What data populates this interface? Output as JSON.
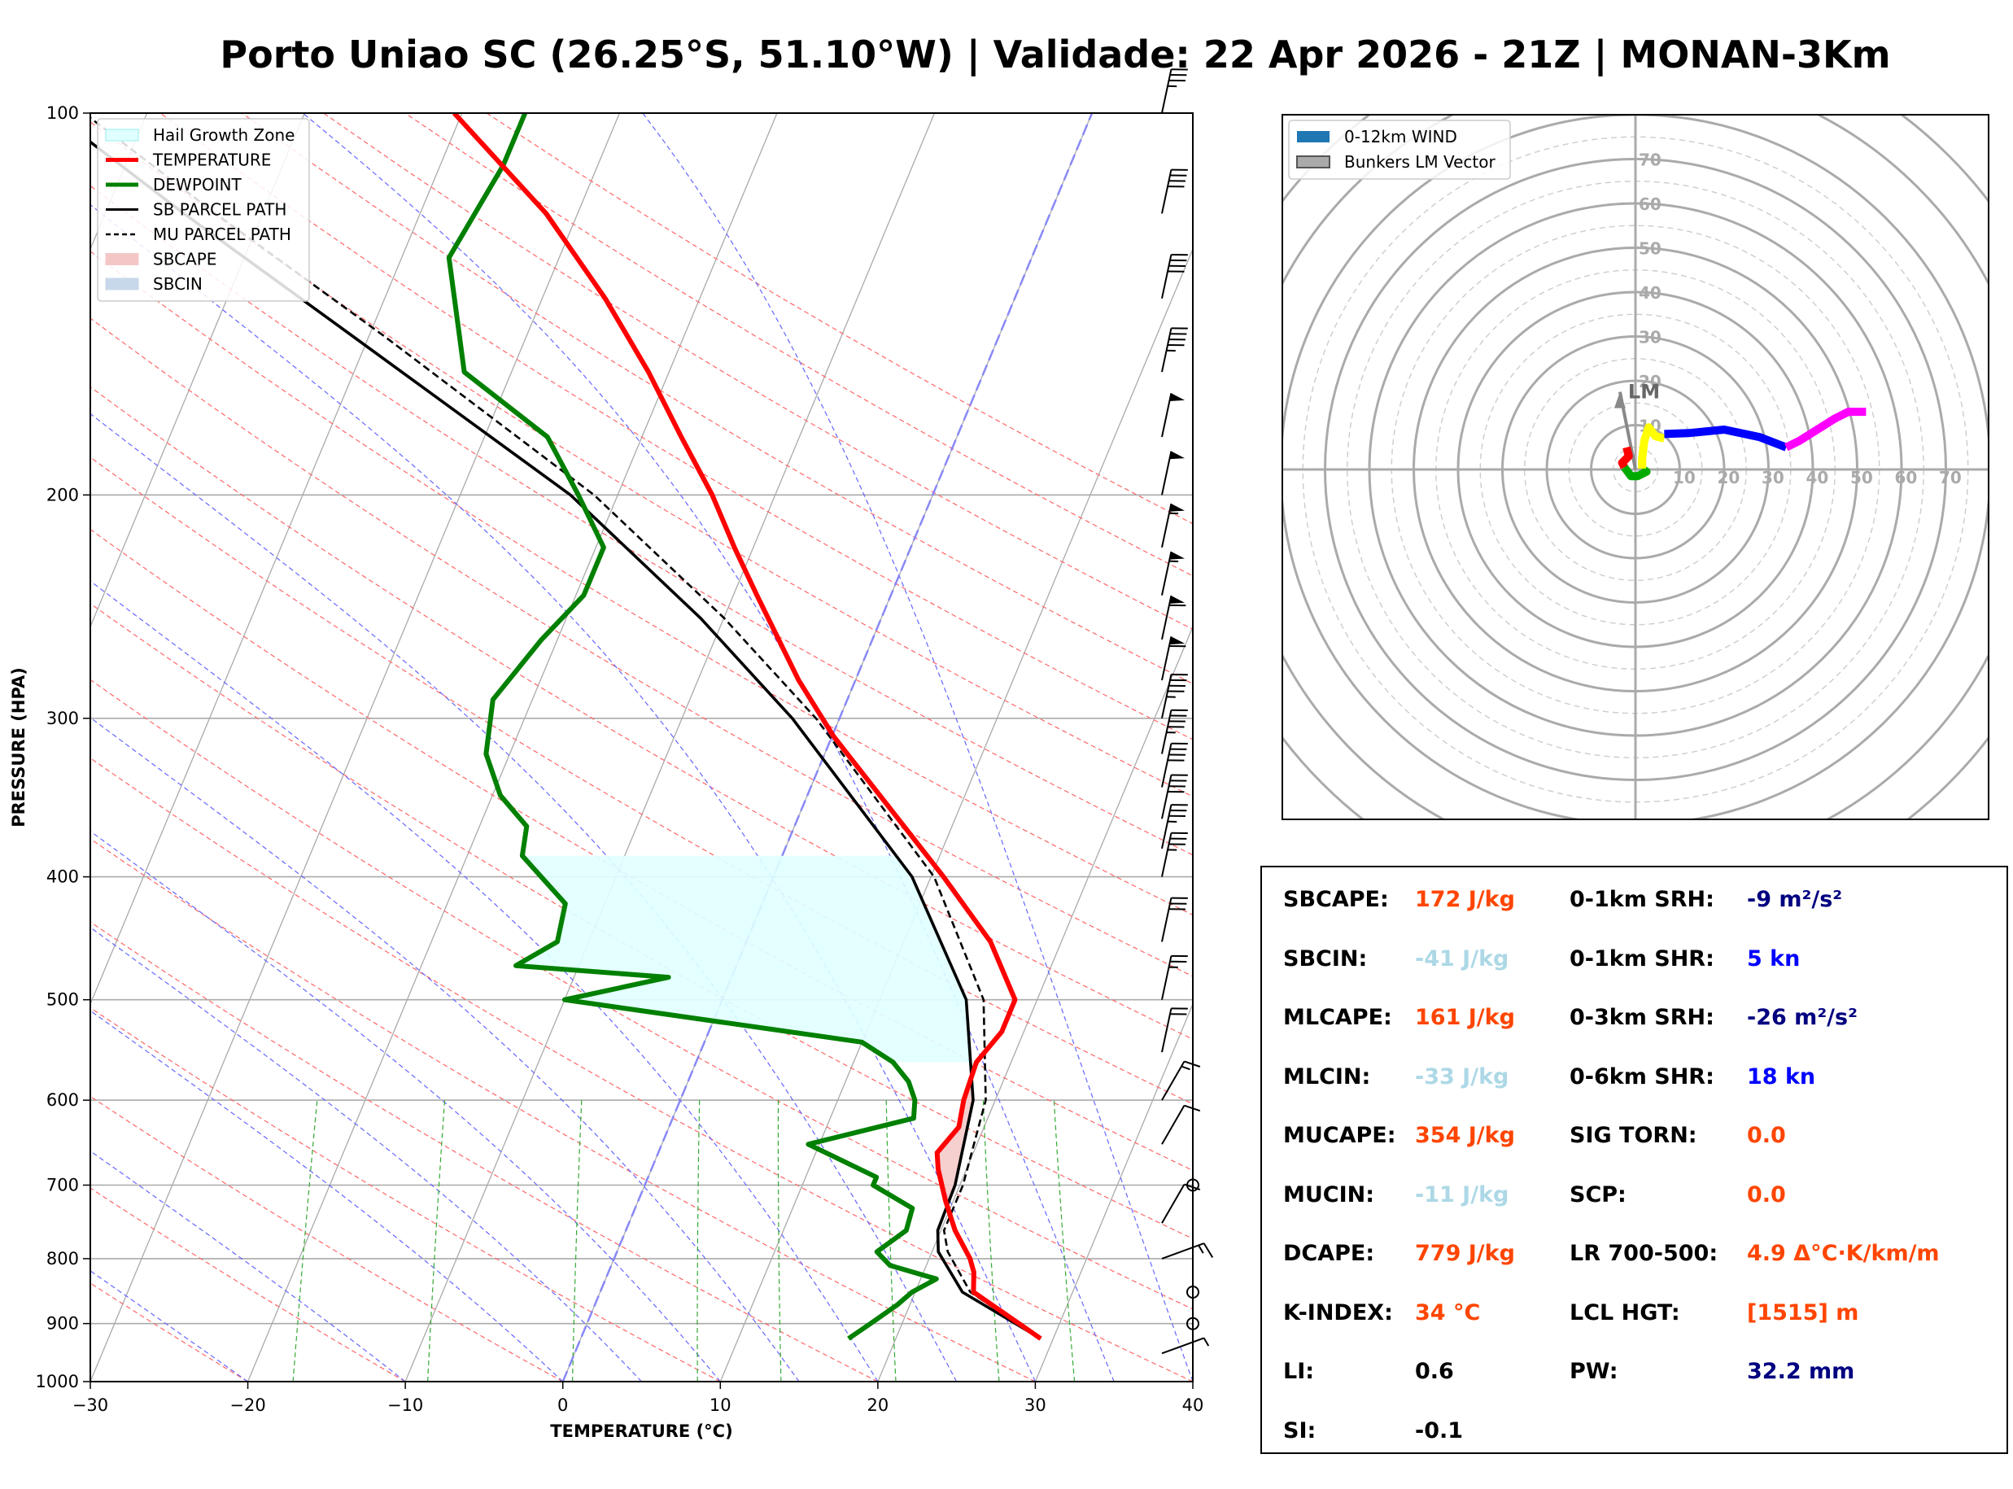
{
  "title": "Porto Uniao SC (26.25°S, 51.10°W) | Validade: 22 Apr 2026 - 21Z | MONAN-3Km",
  "colors": {
    "temperature": "#ff0000",
    "dewpoint": "#008000",
    "parcel": "#000000",
    "hail": "#e0ffff",
    "sbcape": "#f4c7c7",
    "sbcin": "#c7d8ea",
    "dry_adiabat": "#ff6666",
    "moist_adiabat": "#6666ff",
    "mixing_ratio": "#33aa33",
    "cape_text": "#ff4500",
    "cin_text": "#add8e6",
    "srh_text": "#000080",
    "shr_text": "#0000ff"
  },
  "chart_data": [
    {
      "type": "skew-t",
      "title": "",
      "xlabel": "TEMPERATURE (°C)",
      "ylabel": "PRESSURE (HPA)",
      "xlim": [
        -30,
        40
      ],
      "ylim": [
        1000,
        100
      ],
      "xticks": [
        -30,
        -20,
        -10,
        0,
        10,
        20,
        30,
        40
      ],
      "xtick_labels": [
        "−30",
        "−20",
        "−10",
        "0",
        "10",
        "20",
        "30",
        "40"
      ],
      "yticks": [
        1000,
        900,
        800,
        700,
        600,
        500,
        400,
        300,
        200,
        100
      ],
      "ytick_labels": [
        "1000",
        "900",
        "800",
        "700",
        "600",
        "500",
        "400",
        "300",
        "200",
        "100"
      ],
      "legend": {
        "placement": "top-left",
        "entries": [
          "Hail Growth Zone",
          "TEMPERATURE",
          "DEWPOINT",
          "SB PARCEL PATH",
          "MU PARCEL PATH",
          "SBCAPE",
          "SBCIN"
        ]
      },
      "series": [
        {
          "name": "TEMPERATURE",
          "points": [
            [
              925,
              29.2
            ],
            [
              850,
              23.7
            ],
            [
              820,
              23.2
            ],
            [
              800,
              22.6
            ],
            [
              760,
              20.9
            ],
            [
              720,
              19.5
            ],
            [
              680,
              18.2
            ],
            [
              660,
              17.7
            ],
            [
              630,
              18.4
            ],
            [
              600,
              18.0
            ],
            [
              560,
              17.8
            ],
            [
              530,
              18.6
            ],
            [
              500,
              18.6
            ],
            [
              450,
              15.5
            ],
            [
              400,
              10.8
            ],
            [
              350,
              5.2
            ],
            [
              310,
              0.1
            ],
            [
              280,
              -3.6
            ],
            [
              240,
              -8.5
            ],
            [
              220,
              -11.2
            ],
            [
              200,
              -14.0
            ],
            [
              180,
              -17.5
            ],
            [
              160,
              -21.3
            ],
            [
              140,
              -26.0
            ],
            [
              120,
              -32.0
            ],
            [
              100,
              -40.5
            ]
          ]
        },
        {
          "name": "DEWPOINT",
          "points": [
            [
              925,
              17.0
            ],
            [
              900,
              18.0
            ],
            [
              870,
              19.2
            ],
            [
              850,
              19.8
            ],
            [
              830,
              21.0
            ],
            [
              810,
              17.7
            ],
            [
              790,
              16.5
            ],
            [
              760,
              17.8
            ],
            [
              730,
              17.6
            ],
            [
              700,
              14.5
            ],
            [
              690,
              14.5
            ],
            [
              650,
              9.3
            ],
            [
              620,
              15.3
            ],
            [
              600,
              14.9
            ],
            [
              580,
              14.0
            ],
            [
              560,
              12.5
            ],
            [
              540,
              10.0
            ],
            [
              500,
              -10.0
            ],
            [
              480,
              -4.0
            ],
            [
              470,
              -14.0
            ],
            [
              450,
              -12.0
            ],
            [
              420,
              -12.5
            ],
            [
              385,
              -16.5
            ],
            [
              365,
              -17.0
            ],
            [
              345,
              -19.5
            ],
            [
              320,
              -21.5
            ],
            [
              290,
              -22.5
            ],
            [
              260,
              -21.0
            ],
            [
              240,
              -19.5
            ],
            [
              220,
              -19.5
            ],
            [
              200,
              -22.5
            ],
            [
              180,
              -26.0
            ],
            [
              160,
              -33.0
            ],
            [
              130,
              -37.0
            ],
            [
              110,
              -36.0
            ],
            [
              100,
              -36.0
            ]
          ]
        },
        {
          "name": "SB PARCEL PATH",
          "points": [
            [
              925,
              29.2
            ],
            [
              850,
              23.0
            ],
            [
              790,
              20.4
            ],
            [
              760,
              19.8
            ],
            [
              700,
              19.7
            ],
            [
              600,
              18.6
            ],
            [
              500,
              15.5
            ],
            [
              400,
              8.8
            ],
            [
              300,
              -3.0
            ],
            [
              250,
              -11.5
            ],
            [
              200,
              -23.0
            ],
            [
              150,
              -41.0
            ],
            [
              120,
              -55.0
            ],
            [
              100,
              -66.0
            ]
          ]
        },
        {
          "name": "MU PARCEL PATH",
          "points": [
            [
              925,
              29.2
            ],
            [
              850,
              23.5
            ],
            [
              790,
              21.0
            ],
            [
              760,
              20.2
            ],
            [
              700,
              20.2
            ],
            [
              600,
              19.4
            ],
            [
              500,
              16.6
            ],
            [
              400,
              10.2
            ],
            [
              300,
              -1.5
            ],
            [
              250,
              -10.0
            ],
            [
              200,
              -21.5
            ],
            [
              150,
              -39.0
            ],
            [
              120,
              -53.0
            ],
            [
              100,
              -64.0
            ]
          ]
        }
      ],
      "wind_barbs": {
        "pressures": [
          100,
          120,
          140,
          160,
          180,
          200,
          220,
          240,
          260,
          280,
          300,
          320,
          340,
          360,
          380,
          400,
          450,
          500,
          550,
          600,
          650,
          700,
          750,
          800,
          850,
          900,
          950
        ],
        "speeds_kt": [
          35,
          40,
          40,
          45,
          50,
          50,
          55,
          55,
          60,
          60,
          45,
          45,
          40,
          40,
          35,
          35,
          30,
          25,
          20,
          15,
          10,
          0,
          10,
          15,
          0,
          0,
          5
        ]
      }
    },
    {
      "type": "hodograph",
      "rings_kt": [
        10,
        20,
        30,
        40,
        50,
        60,
        70
      ],
      "x_tick_labels": [
        "10",
        "20",
        "30",
        "40",
        "50",
        "60",
        "70"
      ],
      "y_tick_labels": [
        "10",
        "20",
        "30",
        "40",
        "50",
        "60",
        "70"
      ],
      "legend": {
        "placement": "top-left",
        "entries": [
          "0-12km WIND",
          "Bunkers LM Vector"
        ]
      },
      "lm_label": "LM",
      "lm_vector": [
        -3.5,
        17.5
      ],
      "segments": [
        {
          "name": "0-1km",
          "color": "#ff0000",
          "points": [
            [
              -2,
              5
            ],
            [
              -1.5,
              3
            ],
            [
              -3.0,
              1.5
            ],
            [
              -2.5,
              0.5
            ]
          ]
        },
        {
          "name": "1-3km",
          "color": "#00aa00",
          "points": [
            [
              -2.5,
              0.5
            ],
            [
              -1.0,
              -1.5
            ],
            [
              0.5,
              -1.5
            ],
            [
              2.5,
              -0.5
            ],
            [
              1.5,
              0.2
            ]
          ]
        },
        {
          "name": "3-6km",
          "color": "#ffff00",
          "points": [
            [
              1.5,
              0.2
            ],
            [
              1.5,
              2.5
            ],
            [
              2.0,
              6.5
            ],
            [
              3.0,
              9.5
            ],
            [
              4.5,
              7.5
            ],
            [
              6.5,
              7
            ]
          ]
        },
        {
          "name": "6-9km",
          "color": "#0000ff",
          "points": [
            [
              6.5,
              8
            ],
            [
              12,
              8.2
            ],
            [
              20,
              9
            ],
            [
              28,
              7.3
            ],
            [
              34,
              5
            ]
          ]
        },
        {
          "name": "9-12km",
          "color": "#ff00ff",
          "points": [
            [
              34,
              5
            ],
            [
              37,
              6.5
            ],
            [
              41,
              9
            ],
            [
              45,
              11.5
            ],
            [
              48,
              13
            ],
            [
              52,
              13
            ]
          ]
        }
      ]
    }
  ],
  "params": {
    "left": [
      {
        "label": "SBCAPE:",
        "value": "172 J/kg",
        "color": "#ff4500"
      },
      {
        "label": "SBCIN:",
        "value": "-41 J/kg",
        "color": "#add8e6"
      },
      {
        "label": "MLCAPE:",
        "value": "161 J/kg",
        "color": "#ff4500"
      },
      {
        "label": "MLCIN:",
        "value": "-33 J/kg",
        "color": "#add8e6"
      },
      {
        "label": "MUCAPE:",
        "value": "354 J/kg",
        "color": "#ff4500"
      },
      {
        "label": "MUCIN:",
        "value": "-11 J/kg",
        "color": "#add8e6"
      },
      {
        "label": "DCAPE:",
        "value": "779 J/kg",
        "color": "#ff4500"
      },
      {
        "label": "K-INDEX:",
        "value": "34 °C",
        "color": "#ff4500"
      },
      {
        "label": "LI:",
        "value": "0.6",
        "color": "#000000"
      },
      {
        "label": "SI:",
        "value": "-0.1",
        "color": "#000000"
      }
    ],
    "right": [
      {
        "label": "0-1km SRH:",
        "value": "-9 m²/s²",
        "color": "#000080"
      },
      {
        "label": "0-1km SHR:",
        "value": "5 kn",
        "color": "#0000ff"
      },
      {
        "label": "0-3km SRH:",
        "value": "-26 m²/s²",
        "color": "#000080"
      },
      {
        "label": "0-6km SHR:",
        "value": "18 kn",
        "color": "#0000ff"
      },
      {
        "label": "SIG TORN:",
        "value": "0.0",
        "color": "#ff4500"
      },
      {
        "label": "SCP:",
        "value": "0.0",
        "color": "#ff4500"
      },
      {
        "label": "LR 700-500:",
        "value": "4.9 Δ°C·K/km/m",
        "color": "#ff4500"
      },
      {
        "label": "LCL HGT:",
        "value": "[1515] m",
        "color": "#ff4500"
      },
      {
        "label": "PW:",
        "value": "32.2 mm",
        "color": "#000080"
      }
    ]
  }
}
